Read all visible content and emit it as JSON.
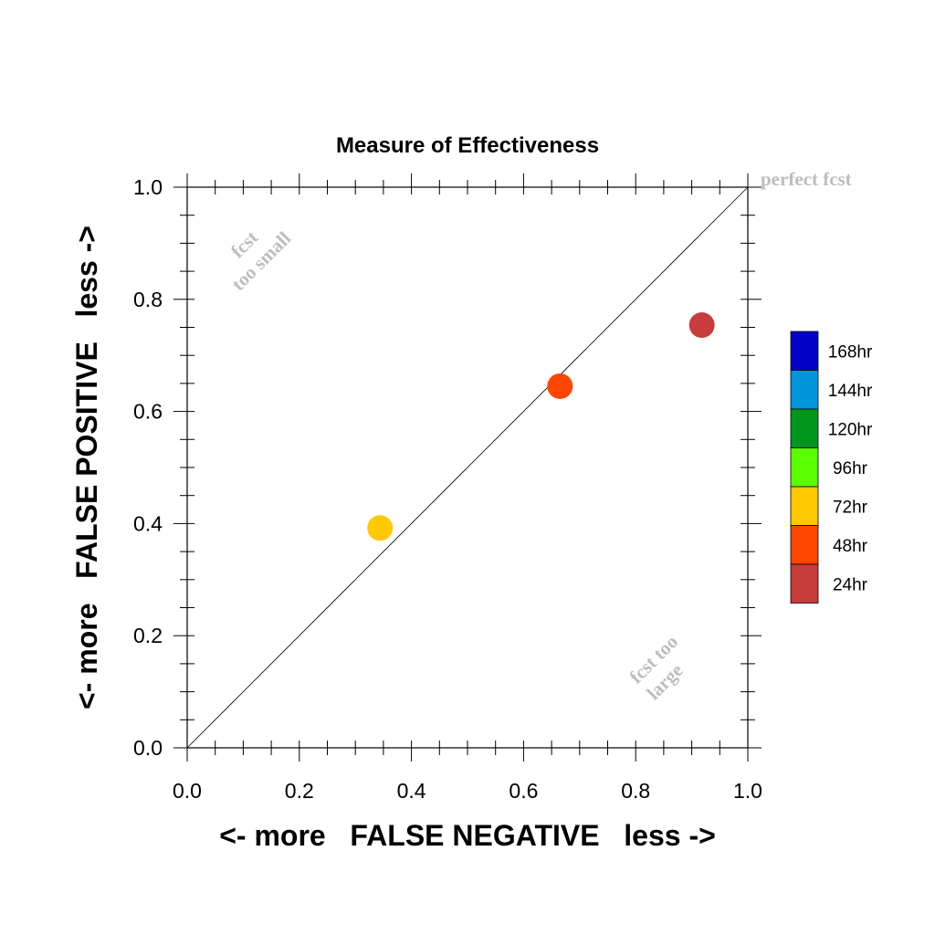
{
  "chart_data": {
    "type": "scatter",
    "title": "Measure of Effectiveness",
    "xlabel": "<- more   FALSE NEGATIVE   less ->",
    "ylabel": "<- more   FALSE POSITIVE   less ->",
    "xlim": [
      0.0,
      1.0
    ],
    "ylim": [
      0.0,
      1.0
    ],
    "xticks": [
      "0.0",
      "0.2",
      "0.4",
      "0.6",
      "0.8",
      "1.0"
    ],
    "yticks": [
      "0.0",
      "0.2",
      "0.4",
      "0.6",
      "0.8",
      "1.0"
    ],
    "reference_line": {
      "from": [
        0,
        0
      ],
      "to": [
        1,
        1
      ],
      "label": "perfect fcst"
    },
    "annotations": [
      {
        "text": "fcst",
        "x": 0.11,
        "y": 0.89
      },
      {
        "text": "too small",
        "x": 0.14,
        "y": 0.86
      },
      {
        "text": "fcst too",
        "x": 0.84,
        "y": 0.15
      },
      {
        "text": "large",
        "x": 0.86,
        "y": 0.11
      }
    ],
    "points": [
      {
        "series": "72hr",
        "x": 0.344,
        "y": 0.392
      },
      {
        "series": "48hr",
        "x": 0.665,
        "y": 0.645
      },
      {
        "series": "24hr",
        "x": 0.918,
        "y": 0.754
      }
    ],
    "legend": {
      "placement": "right",
      "items": [
        {
          "label": "168hr",
          "color": "#0000c8"
        },
        {
          "label": "144hr",
          "color": "#0096dc"
        },
        {
          "label": "120hr",
          "color": "#00961e"
        },
        {
          "label": "96hr",
          "color": "#5aff00"
        },
        {
          "label": "72hr",
          "color": "#ffc800"
        },
        {
          "label": "48hr",
          "color": "#ff4600"
        },
        {
          "label": "24hr",
          "color": "#c83c3c"
        }
      ]
    },
    "grid": false
  }
}
